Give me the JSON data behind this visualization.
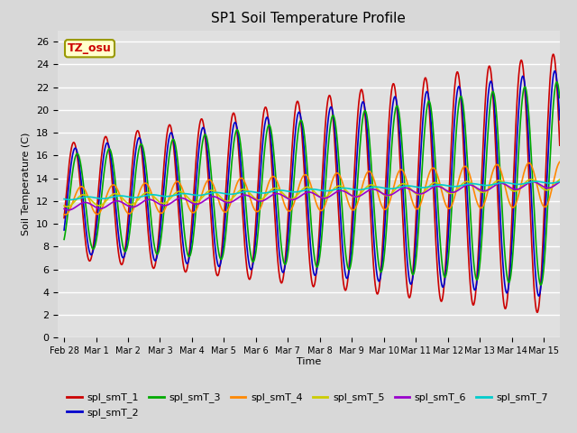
{
  "title": "SP1 Soil Temperature Profile",
  "xlabel": "Time",
  "ylabel": "Soil Temperature (C)",
  "annotation": "TZ_osu",
  "annotation_color": "#cc0000",
  "annotation_bg": "#ffffcc",
  "annotation_border": "#999900",
  "ylim": [
    0,
    27
  ],
  "yticks": [
    0,
    2,
    4,
    6,
    8,
    10,
    12,
    14,
    16,
    18,
    20,
    22,
    24,
    26
  ],
  "background_color": "#e0e0e0",
  "grid_color": "#ffffff",
  "series_colors": {
    "spl_smT_1": "#cc0000",
    "spl_smT_2": "#0000cc",
    "spl_smT_3": "#00aa00",
    "spl_smT_4": "#ff8800",
    "spl_smT_5": "#cccc00",
    "spl_smT_6": "#9900cc",
    "spl_smT_7": "#00cccc"
  },
  "figsize": [
    6.4,
    4.8
  ],
  "dpi": 100
}
